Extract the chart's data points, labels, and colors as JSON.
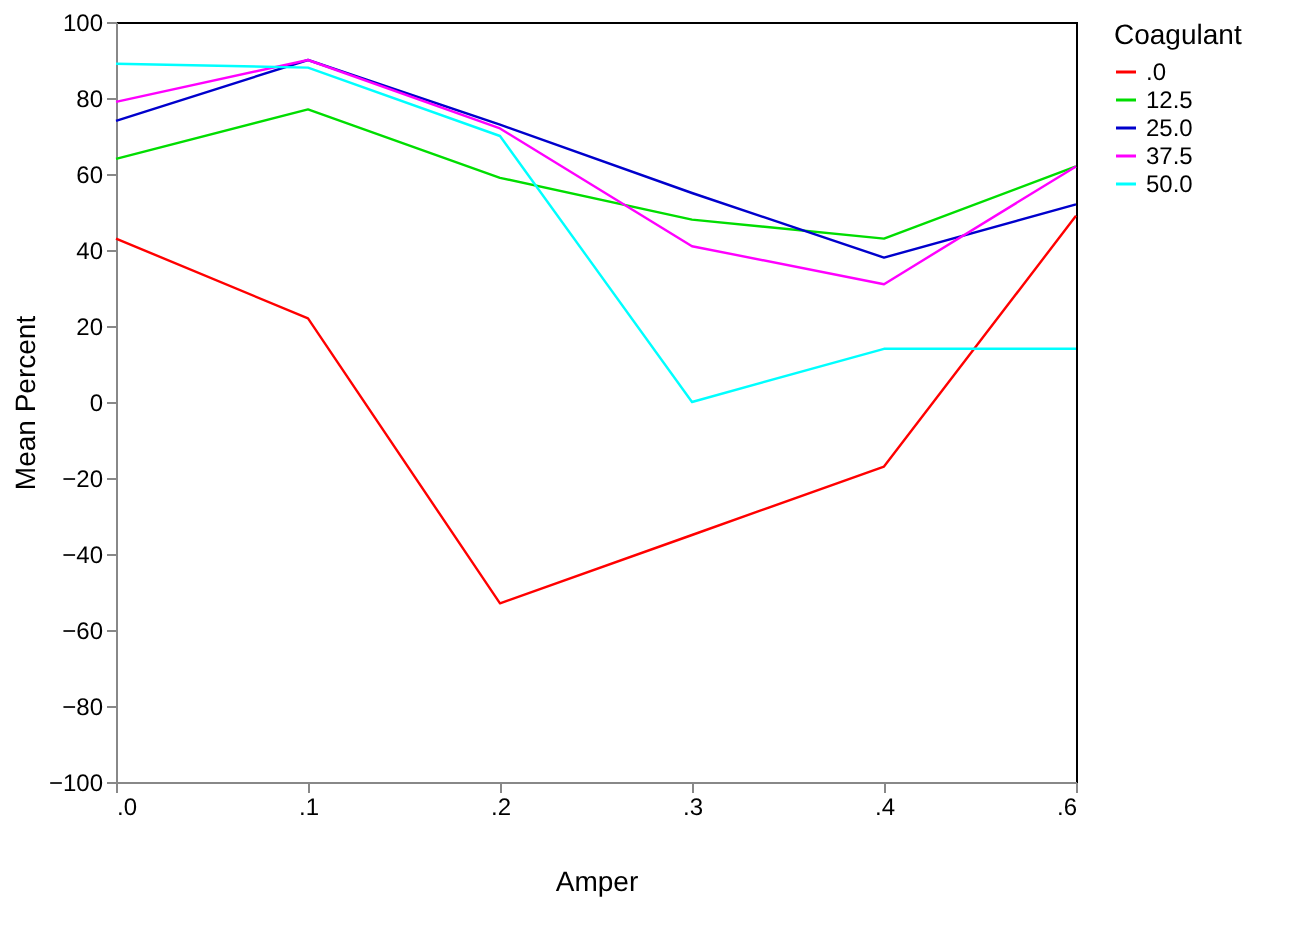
{
  "chart_data": {
    "type": "line",
    "xlabel": "Amper",
    "ylabel": "Mean Percent",
    "legend_title": "Coagulant",
    "categories": [
      ".0",
      ".1",
      ".2",
      ".3",
      ".4",
      ".6"
    ],
    "series": [
      {
        "name": ".0",
        "color": "#ff0000",
        "values": [
          43,
          22,
          -53,
          -35,
          -17,
          49
        ]
      },
      {
        "name": "12.5",
        "color": "#00dd00",
        "values": [
          64,
          77,
          59,
          48,
          43,
          62
        ]
      },
      {
        "name": "25.0",
        "color": "#0000cc",
        "values": [
          74,
          90,
          73,
          55,
          38,
          52
        ]
      },
      {
        "name": "37.5",
        "color": "#ff00ff",
        "values": [
          79,
          90,
          72,
          41,
          31,
          62
        ]
      },
      {
        "name": "50.0",
        "color": "#00ffff",
        "values": [
          89,
          88,
          70,
          0,
          14,
          14
        ]
      }
    ],
    "ylim": [
      -100,
      100
    ],
    "yticks": [
      -100,
      -80,
      -60,
      -40,
      -20,
      0,
      20,
      40,
      60,
      80,
      100
    ],
    "grid": false,
    "legend": "right",
    "marker": "none",
    "line_style": "solid"
  }
}
